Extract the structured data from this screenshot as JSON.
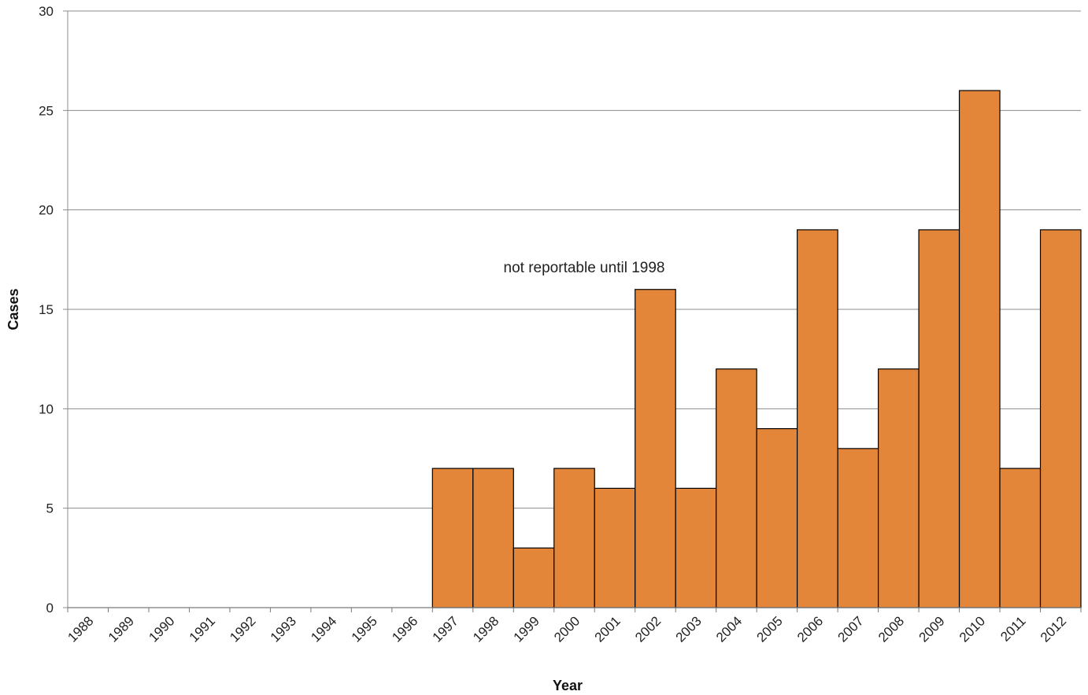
{
  "chart_data": {
    "type": "bar",
    "title": "",
    "xlabel": "Year",
    "ylabel": "Cases",
    "ylim": [
      0,
      30
    ],
    "yticks": [
      0,
      5,
      10,
      15,
      20,
      25,
      30
    ],
    "grid": "horizontal",
    "legend": "none",
    "bar_color": "#E3863A",
    "bar_edge_color": "#000000",
    "categories": [
      "1988",
      "1989",
      "1990",
      "1991",
      "1992",
      "1993",
      "1994",
      "1995",
      "1996",
      "1997",
      "1998",
      "1999",
      "2000",
      "2001",
      "2002",
      "2003",
      "2004",
      "2005",
      "2006",
      "2007",
      "2008",
      "2009",
      "2010",
      "2011",
      "2012"
    ],
    "values": [
      null,
      null,
      null,
      null,
      null,
      null,
      null,
      null,
      null,
      7,
      7,
      3,
      7,
      6,
      16,
      6,
      12,
      9,
      19,
      8,
      12,
      19,
      26,
      7,
      19
    ],
    "annotation": "not reportable until 1998"
  }
}
